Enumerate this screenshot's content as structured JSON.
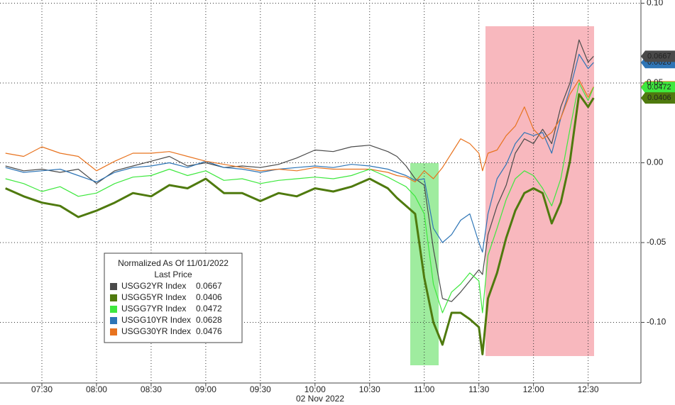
{
  "chart_data": {
    "type": "line",
    "x_label": "02 Nov 2022",
    "legend_title": "Normalized As Of 11/01/2022",
    "legend_subtitle": "Last Price",
    "x": [
      "07:10",
      "07:20",
      "07:30",
      "07:40",
      "07:50",
      "08:00",
      "08:10",
      "08:20",
      "08:30",
      "08:40",
      "08:50",
      "09:00",
      "09:10",
      "09:20",
      "09:30",
      "09:40",
      "09:50",
      "10:00",
      "10:10",
      "10:20",
      "10:30",
      "10:40",
      "10:45",
      "10:50",
      "10:55",
      "11:00",
      "11:05",
      "11:10",
      "11:15",
      "11:20",
      "11:25",
      "11:30",
      "11:32",
      "11:35",
      "11:40",
      "11:45",
      "11:50",
      "11:55",
      "12:00",
      "12:05",
      "12:10",
      "12:15",
      "12:20",
      "12:25",
      "12:30",
      "12:33"
    ],
    "xlim": [
      "07:07",
      "12:59"
    ],
    "xticks": [
      "07:30",
      "08:00",
      "08:30",
      "09:00",
      "09:30",
      "10:00",
      "10:30",
      "11:00",
      "11:30",
      "12:00",
      "12:30"
    ],
    "ylim": [
      -0.138,
      0.102
    ],
    "yticks": [
      {
        "value": 0.1,
        "label": "0.10"
      },
      -0.05,
      {
        "value": 0.05,
        "label": "0.05"
      },
      {
        "value": 0,
        "label": "0.00"
      },
      {
        "value": -0.1,
        "label": "-0.10"
      }
    ],
    "grid": true,
    "series": [
      {
        "name": "USGG2YR Index",
        "last_price": 0.0667,
        "color": "#4a4a4a",
        "width": 1.2,
        "values": [
          -0.002,
          -0.005,
          -0.004,
          -0.006,
          -0.004,
          -0.013,
          -0.005,
          -0.002,
          0.001,
          0.004,
          -0.002,
          0,
          -0.003,
          -0.002,
          -0.003,
          -0.001,
          0.003,
          0.008,
          0.007,
          0.01,
          0.011,
          0.007,
          0.004,
          -0.002,
          -0.01,
          -0.014,
          -0.054,
          -0.085,
          -0.087,
          -0.081,
          -0.074,
          -0.067,
          -0.07,
          -0.045,
          -0.027,
          -0.014,
          0.006,
          0.015,
          0.012,
          0.021,
          0.012,
          0.035,
          0.05,
          0.077,
          0.063,
          0.0667
        ]
      },
      {
        "name": "USGG5YR Index",
        "last_price": 0.0406,
        "color": "#4f7a0e",
        "width": 3,
        "values": [
          -0.016,
          -0.021,
          -0.025,
          -0.027,
          -0.034,
          -0.03,
          -0.025,
          -0.019,
          -0.021,
          -0.014,
          -0.016,
          -0.01,
          -0.019,
          -0.019,
          -0.024,
          -0.019,
          -0.021,
          -0.016,
          -0.018,
          -0.015,
          -0.01,
          -0.016,
          -0.022,
          -0.027,
          -0.032,
          -0.072,
          -0.1,
          -0.114,
          -0.094,
          -0.094,
          -0.098,
          -0.103,
          -0.12,
          -0.085,
          -0.069,
          -0.047,
          -0.03,
          -0.019,
          -0.016,
          -0.019,
          -0.038,
          -0.025,
          0.001,
          0.043,
          0.035,
          0.0406
        ]
      },
      {
        "name": "USGG7YR Index",
        "last_price": 0.0472,
        "color": "#3ee83e",
        "width": 1.2,
        "values": [
          -0.01,
          -0.013,
          -0.018,
          -0.015,
          -0.021,
          -0.019,
          -0.013,
          -0.009,
          -0.008,
          -0.004,
          -0.008,
          -0.005,
          -0.011,
          -0.01,
          -0.013,
          -0.011,
          -0.01,
          -0.009,
          -0.01,
          -0.008,
          -0.004,
          -0.009,
          -0.012,
          -0.015,
          -0.021,
          -0.032,
          -0.076,
          -0.094,
          -0.081,
          -0.076,
          -0.069,
          -0.074,
          -0.094,
          -0.058,
          -0.041,
          -0.023,
          -0.01,
          -0.005,
          -0.008,
          -0.016,
          -0.027,
          -0.01,
          0.021,
          0.05,
          0.039,
          0.0472
        ]
      },
      {
        "name": "USGG10YR Index",
        "last_price": 0.0628,
        "color": "#2e75b6",
        "width": 1.2,
        "values": [
          -0.003,
          -0.006,
          -0.005,
          -0.004,
          -0.008,
          -0.012,
          -0.006,
          -0.003,
          -0.002,
          0,
          -0.003,
          0.001,
          -0.003,
          -0.004,
          -0.006,
          -0.004,
          -0.003,
          -0.002,
          -0.003,
          -0.001,
          -0.002,
          -0.004,
          -0.006,
          -0.008,
          -0.011,
          -0.01,
          -0.041,
          -0.05,
          -0.045,
          -0.036,
          -0.032,
          -0.05,
          -0.056,
          -0.032,
          -0.01,
          -0.001,
          0.012,
          0.019,
          0.017,
          0.019,
          0.006,
          0.028,
          0.046,
          0.068,
          0.059,
          0.0628
        ]
      },
      {
        "name": "USGG30YR Index",
        "last_price": 0.0476,
        "color": "#e8731f",
        "width": 1.2,
        "values": [
          0.006,
          0.004,
          0.01,
          0.006,
          0.004,
          -0.005,
          0.001,
          0.006,
          0.006,
          0.007,
          0.004,
          0.001,
          -0.001,
          -0.003,
          -0.005,
          -0.004,
          -0.005,
          -0.003,
          -0.004,
          -0.004,
          -0.004,
          -0.006,
          -0.008,
          -0.009,
          -0.012,
          -0.005,
          -0.01,
          -0.003,
          0.006,
          0.015,
          0.012,
          0.006,
          -0.005,
          0.006,
          0.008,
          0.017,
          0.023,
          0.035,
          0.021,
          0.015,
          0.019,
          0.028,
          0.043,
          0.052,
          0.041,
          0.0476
        ]
      }
    ]
  }
}
